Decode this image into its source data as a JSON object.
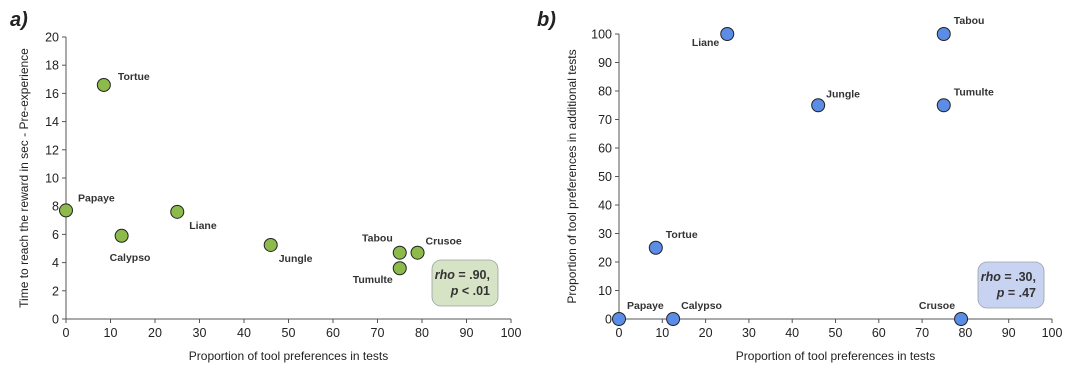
{
  "chart_data": [
    {
      "type": "scatter",
      "panel": "a)",
      "xlabel": "Proportion of tool preferences in tests",
      "ylabel": "Time to reach the reward in sec - Pre-experience",
      "xlim": [
        0,
        100
      ],
      "ylim": [
        0,
        20
      ],
      "xticks": [
        0,
        10,
        20,
        30,
        40,
        50,
        60,
        70,
        80,
        90,
        100
      ],
      "yticks": [
        0,
        2,
        4,
        6,
        8,
        10,
        12,
        14,
        16,
        18,
        20
      ],
      "grid": false,
      "marker_color": "#8cbb4c",
      "points": [
        {
          "name": "Tortue",
          "x": 8.5,
          "y": 16.6
        },
        {
          "name": "Papaye",
          "x": 0,
          "y": 7.7
        },
        {
          "name": "Liane",
          "x": 25,
          "y": 7.6
        },
        {
          "name": "Calypso",
          "x": 12.5,
          "y": 5.9
        },
        {
          "name": "Jungle",
          "x": 46,
          "y": 5.25
        },
        {
          "name": "Tabou",
          "x": 75,
          "y": 4.7
        },
        {
          "name": "Crusoe",
          "x": 79,
          "y": 4.7
        },
        {
          "name": "Tumulte",
          "x": 75,
          "y": 3.6
        }
      ],
      "stats": {
        "rho_label": "rho",
        "rho_value": "= .90,",
        "p_label": "p",
        "p_value": "< .01",
        "box_color": "#d7e3c5"
      }
    },
    {
      "type": "scatter",
      "panel": "b)",
      "xlabel": "Proportion of tool preferences in tests",
      "ylabel": "Proportion of tool preferences in additional tests",
      "xlim": [
        0,
        100
      ],
      "ylim": [
        0,
        100
      ],
      "xticks": [
        0,
        10,
        20,
        30,
        40,
        50,
        60,
        70,
        80,
        90,
        100
      ],
      "yticks": [
        0,
        10,
        20,
        30,
        40,
        50,
        60,
        70,
        80,
        90,
        100
      ],
      "grid": false,
      "marker_color": "#5b8de6",
      "points": [
        {
          "name": "Liane",
          "x": 25,
          "y": 100
        },
        {
          "name": "Tabou",
          "x": 75,
          "y": 100
        },
        {
          "name": "Jungle",
          "x": 46,
          "y": 75
        },
        {
          "name": "Tumulte",
          "x": 75,
          "y": 75
        },
        {
          "name": "Tortue",
          "x": 8.5,
          "y": 25
        },
        {
          "name": "Papaye",
          "x": 0,
          "y": 0
        },
        {
          "name": "Calypso",
          "x": 12.5,
          "y": 0
        },
        {
          "name": "Crusoe",
          "x": 79,
          "y": 0
        }
      ],
      "stats": {
        "rho_label": "rho",
        "rho_value": "=  .30,",
        "p_label": "p",
        "p_value": "= .47",
        "box_color": "#c8d3f2"
      }
    }
  ]
}
